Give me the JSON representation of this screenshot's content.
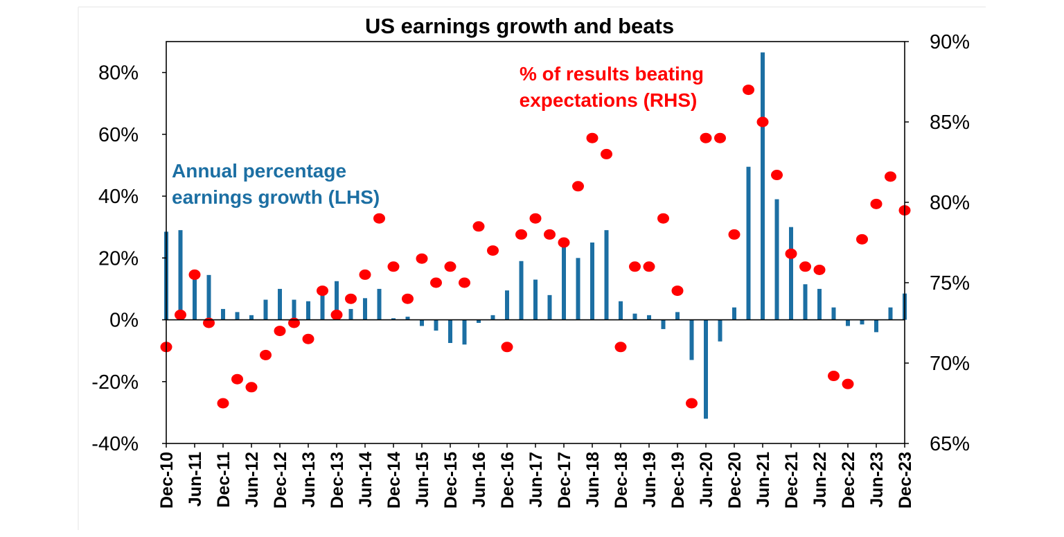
{
  "chart_data": {
    "type": "bar",
    "title": "US earnings growth and beats",
    "annotations": {
      "lhs_label_line1": "Annual percentage",
      "lhs_label_line2": "earnings growth (LHS)",
      "rhs_label_line1": "% of results beating",
      "rhs_label_line2": "expectations (RHS)"
    },
    "colors": {
      "bars": "#1c6fa3",
      "dots": "#ff0000",
      "lhs_text": "#1c6fa3",
      "rhs_text": "#ff0000",
      "axis": "#000000"
    },
    "y_left": {
      "min": -40,
      "max": 90,
      "ticks": [
        -40,
        -20,
        0,
        20,
        40,
        60,
        80
      ],
      "tick_labels": [
        "-40%",
        "-20%",
        "0%",
        "20%",
        "40%",
        "60%",
        "80%"
      ]
    },
    "y_right": {
      "min": 65,
      "max": 90,
      "ticks": [
        65,
        70,
        75,
        80,
        85,
        90
      ],
      "tick_labels": [
        "65%",
        "70%",
        "75%",
        "80%",
        "85%",
        "90%"
      ]
    },
    "x_tick_labels": [
      "Dec-10",
      "Jun-11",
      "Dec-11",
      "Jun-12",
      "Dec-12",
      "Jun-13",
      "Dec-13",
      "Jun-14",
      "Dec-14",
      "Jun-15",
      "Dec-15",
      "Jun-16",
      "Dec-16",
      "Jun-17",
      "Dec-17",
      "Jun-18",
      "Dec-18",
      "Jun-19",
      "Dec-19",
      "Jun-20",
      "Dec-20",
      "Jun-21",
      "Dec-21",
      "Jun-22",
      "Dec-22",
      "Jun-23",
      "Dec-23"
    ],
    "categories": [
      "Dec-10",
      "Mar-11",
      "Jun-11",
      "Sep-11",
      "Dec-11",
      "Mar-12",
      "Jun-12",
      "Sep-12",
      "Dec-12",
      "Mar-13",
      "Jun-13",
      "Sep-13",
      "Dec-13",
      "Mar-14",
      "Jun-14",
      "Sep-14",
      "Dec-14",
      "Mar-15",
      "Jun-15",
      "Sep-15",
      "Dec-15",
      "Mar-16",
      "Jun-16",
      "Sep-16",
      "Dec-16",
      "Mar-17",
      "Jun-17",
      "Sep-17",
      "Dec-17",
      "Mar-18",
      "Jun-18",
      "Sep-18",
      "Dec-18",
      "Mar-19",
      "Jun-19",
      "Sep-19",
      "Dec-19",
      "Mar-20",
      "Jun-20",
      "Sep-20",
      "Dec-20",
      "Mar-21",
      "Jun-21",
      "Sep-21",
      "Dec-21",
      "Mar-22",
      "Jun-22",
      "Sep-22",
      "Dec-22",
      "Mar-23",
      "Jun-23",
      "Sep-23",
      "Dec-23"
    ],
    "series": [
      {
        "name": "Annual percentage earnings growth (LHS)",
        "type": "bar",
        "axis": "left",
        "values": [
          28.5,
          29,
          13.5,
          14.5,
          3.5,
          2.5,
          1.5,
          6.5,
          10,
          6.5,
          6,
          8,
          12.5,
          3.5,
          7,
          10,
          0.5,
          1,
          -2,
          -3.5,
          -7.5,
          -8,
          -1,
          1.5,
          9.5,
          19,
          13,
          8,
          24.5,
          20,
          25,
          29,
          6,
          2,
          1.5,
          -3,
          2.5,
          -13,
          -32,
          -7,
          4,
          49.5,
          86.5,
          39,
          30,
          11.5,
          10,
          4,
          -2,
          -1.5,
          -4,
          4,
          8.5
        ]
      },
      {
        "name": "% of results beating expectations (RHS)",
        "type": "scatter",
        "axis": "right",
        "values": [
          71,
          73,
          75.5,
          72.5,
          67.5,
          69,
          68.5,
          70.5,
          72,
          72.5,
          71.5,
          74.5,
          73,
          74,
          75.5,
          79,
          76,
          74,
          76.5,
          75,
          76,
          75,
          78.5,
          77,
          71,
          78,
          79,
          78,
          77.5,
          81,
          84,
          83,
          71,
          76,
          76,
          79,
          74.5,
          67.5,
          84,
          84,
          78,
          87,
          85,
          81.7,
          76.8,
          76,
          75.8,
          69.2,
          68.7,
          77.7,
          79.9,
          81.6,
          79.5
        ]
      }
    ]
  }
}
